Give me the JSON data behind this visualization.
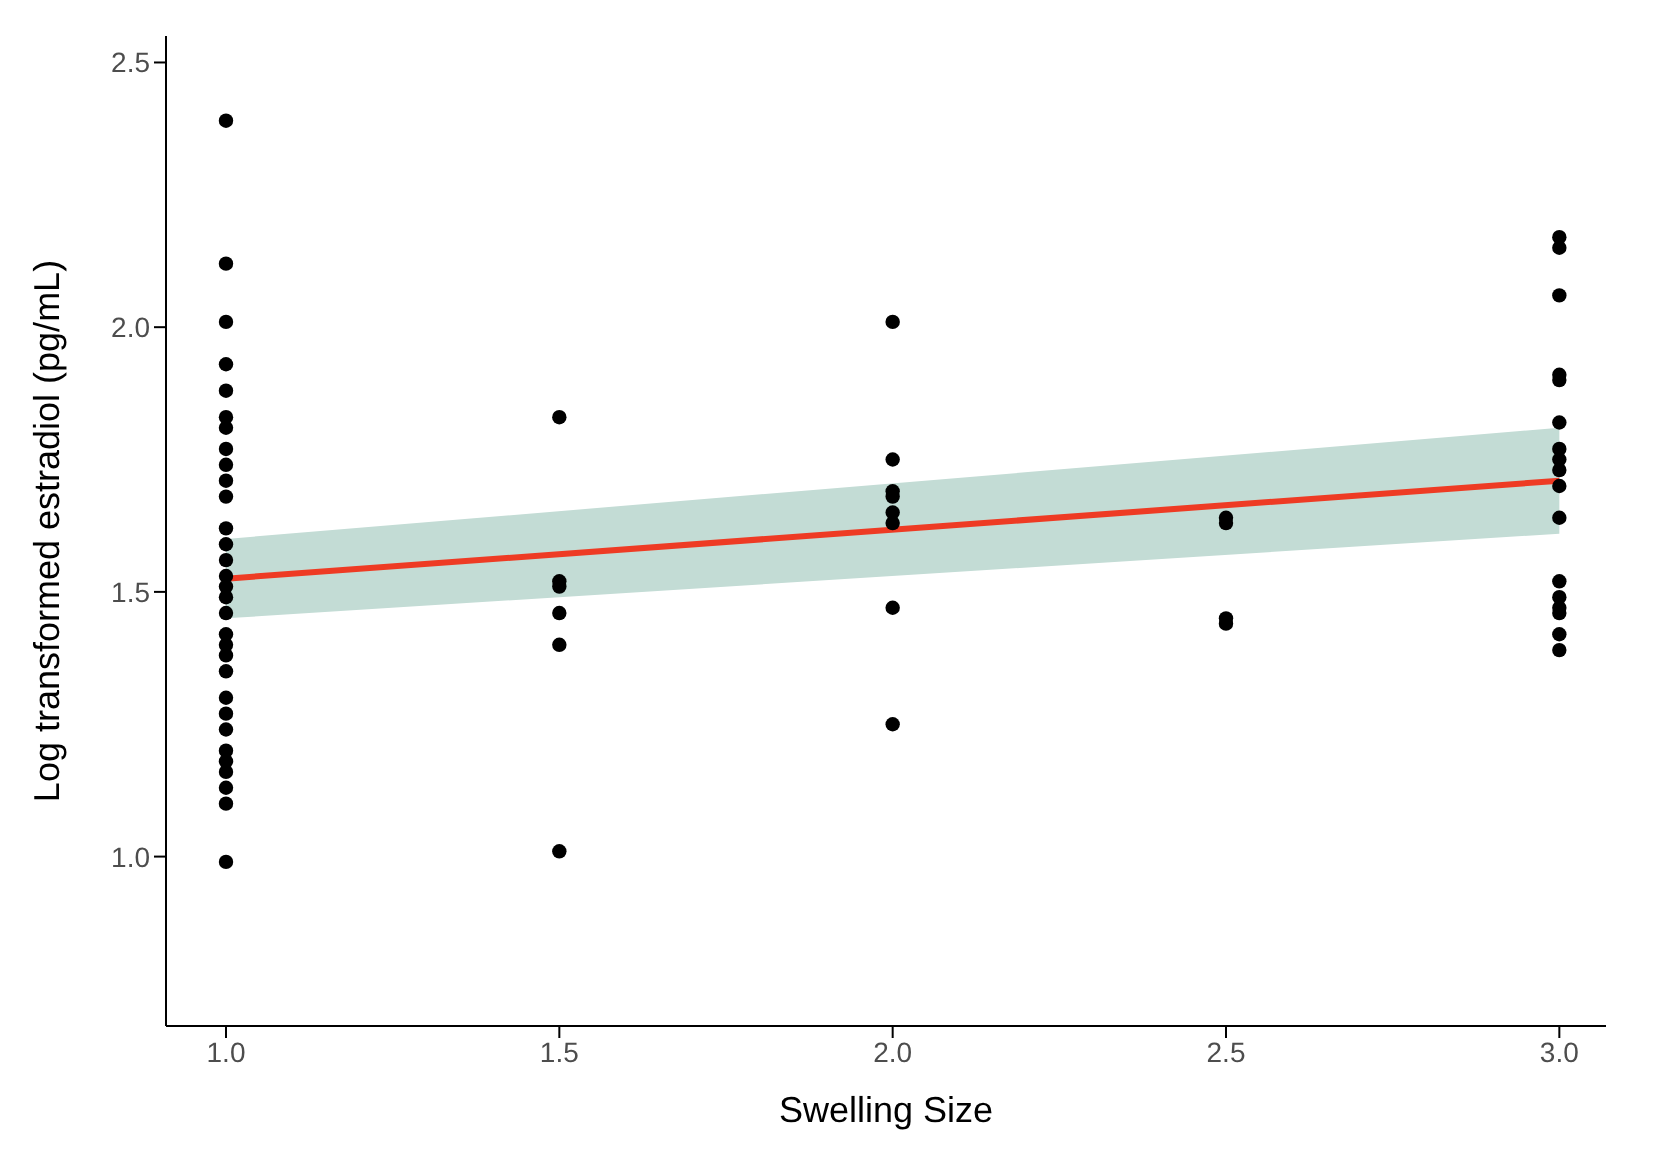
{
  "chart_data": {
    "type": "scatter",
    "xlabel": "Swelling Size",
    "ylabel": "Log transformed estradiol (pg/mL)",
    "xlim": [
      0.91,
      3.07
    ],
    "xticks": [
      {
        "value": 1,
        "label": "1.0"
      },
      {
        "value": 1.5,
        "label": "1.5"
      },
      {
        "value": 2,
        "label": "2.0"
      },
      {
        "value": 2.5,
        "label": "2.5"
      },
      {
        "value": 3,
        "label": "3.0"
      }
    ],
    "ylim": [
      0.68,
      2.55
    ],
    "yticks": [
      {
        "value": 1,
        "label": "1.0"
      },
      {
        "value": 1.5,
        "label": "1.5"
      },
      {
        "value": 2,
        "label": "2.0"
      },
      {
        "value": 2.5,
        "label": "2.5"
      }
    ],
    "grid": false,
    "series": [
      {
        "color": "#000000",
        "marker": "circle",
        "x": [
          1,
          1,
          1,
          1,
          1,
          1,
          1,
          1,
          1,
          1,
          1,
          1,
          1,
          1,
          1,
          1,
          1,
          1,
          1,
          1,
          1,
          1,
          1,
          1,
          1,
          1,
          1,
          1,
          1,
          1,
          1,
          1.5,
          1.5,
          1.5,
          1.5,
          1.5,
          1.5,
          2,
          2,
          2,
          2,
          2,
          2,
          2,
          2,
          2.5,
          2.5,
          2.5,
          2.5,
          3,
          3,
          3,
          3,
          3,
          3,
          3,
          3,
          3,
          3,
          3,
          3,
          3,
          3,
          3,
          3,
          3
        ],
        "values": [
          2.39,
          2.12,
          2.01,
          1.93,
          1.88,
          1.83,
          1.81,
          1.77,
          1.74,
          1.71,
          1.68,
          1.62,
          1.59,
          1.56,
          1.53,
          1.51,
          1.49,
          1.46,
          1.42,
          1.4,
          1.38,
          1.35,
          1.3,
          1.27,
          1.24,
          1.2,
          1.18,
          1.16,
          1.13,
          1.1,
          0.99,
          1.83,
          1.52,
          1.51,
          1.46,
          1.4,
          1.01,
          2.01,
          1.75,
          1.69,
          1.68,
          1.65,
          1.63,
          1.47,
          1.25,
          1.64,
          1.63,
          1.45,
          1.44,
          2.17,
          2.15,
          2.06,
          1.91,
          1.9,
          1.82,
          1.77,
          1.75,
          1.73,
          1.7,
          1.64,
          1.52,
          1.49,
          1.47,
          1.46,
          1.42,
          1.39
        ]
      },
      {
        "type": "line",
        "color": "#ee3b24",
        "x": [
          1,
          3
        ],
        "values": [
          1.525,
          1.71
        ],
        "lower": [
          1.45,
          1.61
        ],
        "upper": [
          1.6,
          1.81
        ]
      }
    ]
  }
}
